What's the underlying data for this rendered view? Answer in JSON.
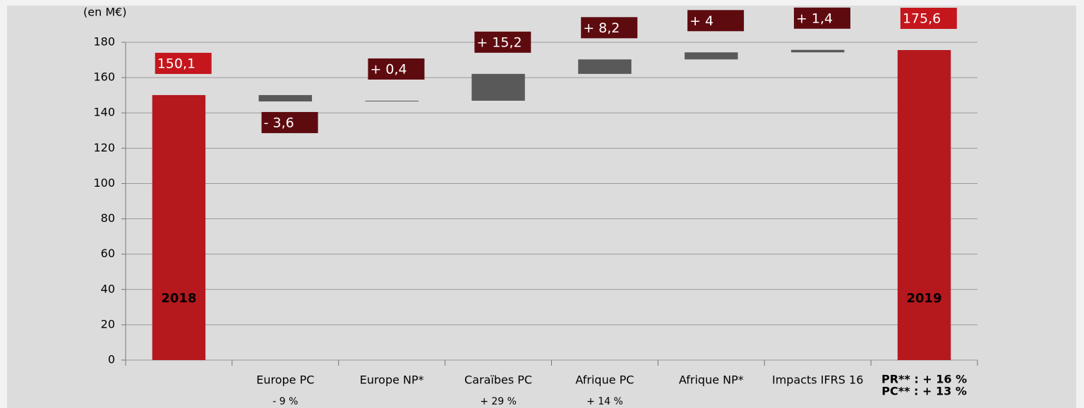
{
  "chart_data": {
    "type": "waterfall",
    "unit_label": "(en M€)",
    "categories": [
      "2018",
      "Europe PC",
      "Europe NP*",
      "Caraïbes PC",
      "Afrique PC",
      "Afrique NP*",
      "Impacts IFRS 16",
      "2019"
    ],
    "values": [
      150.1,
      -3.6,
      0.4,
      15.2,
      8.2,
      4,
      1.4,
      175.6
    ],
    "value_labels": [
      "150,1",
      "- 3,6",
      "+ 0,4",
      "+ 15,2",
      "+ 8,2",
      "+ 4",
      "+ 1,4",
      "175,6"
    ],
    "totals": [
      true,
      false,
      false,
      false,
      false,
      false,
      false,
      true
    ],
    "growth_labels": [
      null,
      "- 9 %",
      null,
      "+ 29 %",
      "+ 14 %",
      null,
      null,
      null
    ],
    "annotations": [
      "PR** : + 16 %",
      "PC** : + 13 %"
    ],
    "total_color": "#b5191e",
    "delta_color": "#595959",
    "total_label_color": "#c4161c",
    "delta_label_color": "#5e0b10",
    "ylim": [
      0,
      180
    ],
    "yticks": [
      0,
      20,
      40,
      60,
      80,
      100,
      120,
      140,
      160,
      180
    ],
    "grid": true
  }
}
